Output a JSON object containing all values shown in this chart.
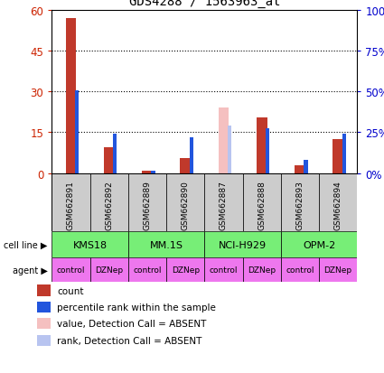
{
  "title": "GDS4288 / 1563963_at",
  "samples": [
    "GSM662891",
    "GSM662892",
    "GSM662889",
    "GSM662890",
    "GSM662887",
    "GSM662888",
    "GSM662893",
    "GSM662894"
  ],
  "count_values": [
    57,
    9.5,
    1.0,
    5.5,
    0,
    20.5,
    3.0,
    12.5
  ],
  "percentile_values": [
    30.5,
    14.5,
    0.7,
    13.0,
    0,
    16.5,
    5.0,
    14.5
  ],
  "absent_value_bars": [
    0,
    0,
    0,
    0,
    24.0,
    0,
    0,
    0
  ],
  "absent_rank_bars": [
    0,
    0,
    0,
    0,
    17.5,
    0,
    0,
    0
  ],
  "cell_lines": [
    {
      "label": "KMS18",
      "start": 0,
      "end": 2
    },
    {
      "label": "MM.1S",
      "start": 2,
      "end": 4
    },
    {
      "label": "NCI-H929",
      "start": 4,
      "end": 6
    },
    {
      "label": "OPM-2",
      "start": 6,
      "end": 8
    }
  ],
  "agents": [
    "control",
    "DZNep",
    "control",
    "DZNep",
    "control",
    "DZNep",
    "control",
    "DZNep"
  ],
  "ylim_left": [
    0,
    60
  ],
  "ylim_right": [
    0,
    100
  ],
  "yticks_left": [
    0,
    15,
    30,
    45,
    60
  ],
  "ytick_labels_left": [
    "0",
    "15",
    "30",
    "45",
    "60"
  ],
  "yticks_right": [
    0,
    25,
    50,
    75,
    100
  ],
  "ytick_labels_right": [
    "0%",
    "25%",
    "50%",
    "75%",
    "100%"
  ],
  "color_count": "#c0392b",
  "color_percentile": "#2255dd",
  "color_absent_value": "#f5c0c0",
  "color_absent_rank": "#b8c4f0",
  "cell_line_bg": "#77ee77",
  "agent_bg": "#ee77ee",
  "sample_bg": "#cccccc",
  "bar_width": 0.28,
  "blue_bar_width": 0.1,
  "left_label_color": "#cc2200",
  "right_label_color": "#0000cc",
  "xlabel_fontsize": 6.5,
  "legend_fontsize": 7.5,
  "title_fontsize": 10,
  "grid_ticks": [
    15,
    30,
    45
  ]
}
